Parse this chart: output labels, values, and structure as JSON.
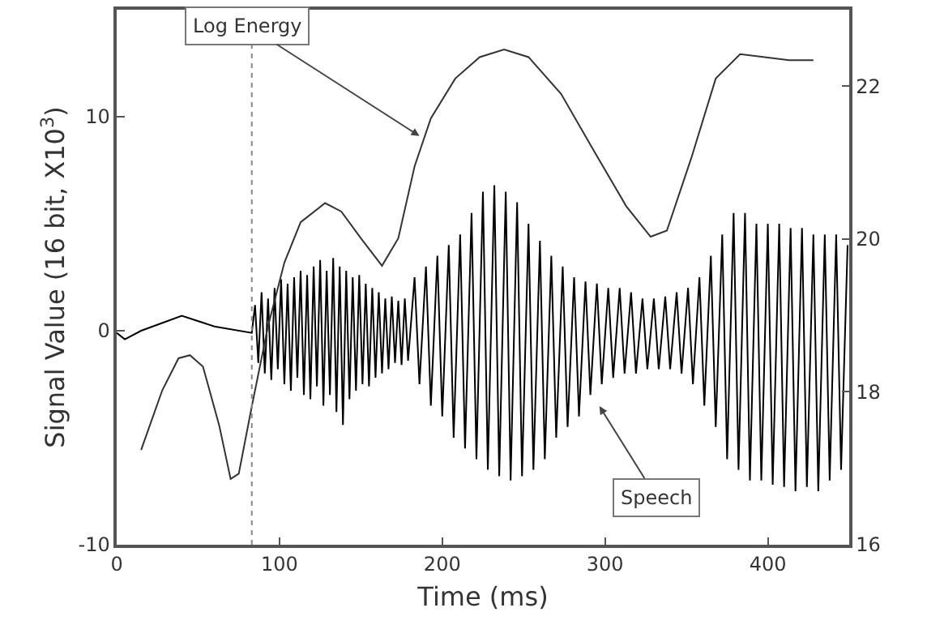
{
  "chart_data": {
    "type": "line",
    "xlabel": "Time (ms)",
    "ylabel": "Signal Value (16 bit, X10$^{3}$)",
    "xlim": [
      0,
      450
    ],
    "xticks": [
      0,
      100,
      200,
      300,
      400
    ],
    "ylim": [
      -10,
      15
    ],
    "yticks": [
      -10,
      0,
      10
    ],
    "y2lim": [
      16,
      23
    ],
    "y2ticks": [
      16,
      18,
      20,
      22
    ],
    "marker": "none",
    "line_style": "solid",
    "series": [
      {
        "color": "#333333",
        "axis": "y2",
        "x": [
          15,
          28,
          38,
          45,
          53,
          63,
          70,
          75,
          83,
          93,
          103,
          113,
          128,
          138,
          150,
          163,
          173,
          183,
          193,
          208,
          223,
          238,
          253,
          273,
          293,
          313,
          328,
          338,
          353,
          368,
          383,
          398,
          413,
          428
        ],
        "values": [
          17.24,
          18.02,
          18.44,
          18.48,
          18.33,
          17.56,
          16.86,
          16.93,
          17.81,
          18.86,
          19.69,
          20.22,
          20.47,
          20.36,
          20.01,
          19.65,
          20.01,
          20.95,
          21.58,
          22.1,
          22.38,
          22.48,
          22.38,
          21.9,
          21.16,
          20.43,
          20.03,
          20.11,
          21.06,
          22.1,
          22.42,
          22.38,
          22.34,
          22.34
        ]
      },
      {
        "color": "#000000",
        "x": [
          0,
          5,
          15,
          40,
          60,
          83,
          85,
          87,
          89,
          91,
          93,
          95,
          97,
          99,
          101,
          103,
          105,
          107,
          109,
          111,
          113,
          115,
          117,
          119,
          121,
          123,
          125,
          127,
          129,
          131,
          133,
          135,
          137,
          139,
          141,
          143,
          145,
          147,
          149,
          151,
          153,
          155,
          157,
          159,
          161,
          163,
          165,
          167,
          169,
          171,
          173,
          175,
          177,
          179,
          183,
          186,
          190,
          193,
          197,
          200,
          204,
          207,
          211,
          214,
          218,
          221,
          225,
          228,
          232,
          235,
          239,
          242,
          246,
          249,
          253,
          256,
          260,
          263,
          267,
          270,
          274,
          277,
          281,
          284,
          288,
          291,
          295,
          298,
          302,
          305,
          309,
          312,
          316,
          319,
          323,
          326,
          330,
          333,
          337,
          340,
          344,
          347,
          351,
          354,
          358,
          361,
          365,
          368,
          372,
          375,
          379,
          382,
          386,
          389,
          393,
          396,
          400,
          403,
          407,
          410,
          414,
          417,
          421,
          424,
          428,
          431,
          435,
          438,
          442,
          445,
          449
        ],
        "values": [
          -0.1,
          -0.4,
          0,
          0.7,
          0.2,
          -0.1,
          1.2,
          -1.5,
          1.8,
          -2,
          1.5,
          -2.3,
          2.0,
          -1.8,
          2.4,
          -2.5,
          2.2,
          -2.8,
          2.5,
          -2.2,
          2.8,
          -3.0,
          2.6,
          -3.2,
          3.0,
          -2.6,
          3.3,
          -3.5,
          2.8,
          -3.0,
          3.4,
          -3.8,
          3.0,
          -4.4,
          2.8,
          -3.2,
          2.5,
          -2.8,
          2.6,
          -2.5,
          2.2,
          -2.6,
          2.0,
          -2.2,
          1.8,
          -2.0,
          1.5,
          -1.8,
          1.6,
          -1.5,
          1.4,
          -1.6,
          1.5,
          -1.4,
          2.5,
          -2.5,
          3.0,
          -3.5,
          3.5,
          -4.0,
          4.0,
          -5.0,
          4.5,
          -5.5,
          5.5,
          -6.0,
          6.5,
          -6.5,
          6.8,
          -6.8,
          6.5,
          -7.0,
          6.0,
          -6.8,
          5.0,
          -6.5,
          4.2,
          -6.0,
          3.5,
          -5.0,
          3.0,
          -4.5,
          2.5,
          -4.0,
          2.3,
          -3.0,
          2.2,
          -2.5,
          2.0,
          -2.2,
          2.0,
          -2.0,
          1.8,
          -2.0,
          1.5,
          -1.8,
          1.5,
          -1.8,
          1.6,
          -1.8,
          1.8,
          -2.0,
          2.0,
          -2.5,
          2.5,
          -3.5,
          3.5,
          -4.5,
          4.5,
          -6.0,
          5.5,
          -6.5,
          5.5,
          -7.0,
          5.0,
          -7.0,
          5.0,
          -7.2,
          5.0,
          -7.3,
          4.8,
          -7.5,
          4.8,
          -7.3,
          4.5,
          -7.5,
          4.5,
          -7.0,
          4.5,
          -6.5,
          4.0
        ]
      }
    ],
    "ref_lines": [
      {
        "axis": "x",
        "value": 83,
        "color": "#888888",
        "line_style": "dotted"
      }
    ],
    "annotations": [
      {
        "text": "Log Energy",
        "x": 186,
        "y": 9.1
      },
      "Speech"
    ]
  }
}
